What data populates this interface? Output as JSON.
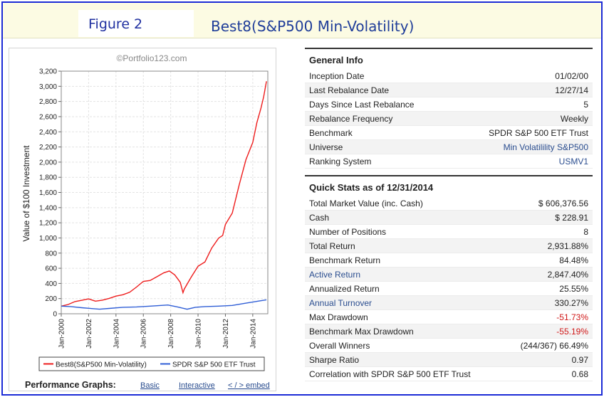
{
  "header": {
    "figure_label": "Figure 2",
    "title": "Best8(S&P500 Min-Volatility)"
  },
  "chart": {
    "watermark": "©Portfolio123.com",
    "perf_label": "Performance Graphs:",
    "link_basic": "Basic",
    "link_interactive": "Interactive",
    "link_embed": "< / > embed"
  },
  "chart_data": {
    "type": "line",
    "title": "",
    "xlabel": "",
    "ylabel": "Value of $100 Investment",
    "ylim": [
      0,
      3200
    ],
    "yticks": [
      0,
      200,
      400,
      600,
      800,
      1000,
      1200,
      1400,
      1600,
      1800,
      2000,
      2200,
      2400,
      2600,
      2800,
      3000,
      3200
    ],
    "ytick_labels": [
      "0",
      "200",
      "400",
      "600",
      "800",
      "1,000",
      "1,200",
      "1,400",
      "1,600",
      "1,800",
      "2,000",
      "2,200",
      "2,400",
      "2,600",
      "2,800",
      "3,000",
      "3,200"
    ],
    "xlim": [
      2000,
      2015.1
    ],
    "xticks": [
      2000,
      2002,
      2004,
      2006,
      2008,
      2010,
      2012,
      2014
    ],
    "xtick_labels": [
      "Jan-2000",
      "Jan-2002",
      "Jan-2004",
      "Jan-2006",
      "Jan-2008",
      "Jan-2010",
      "Jan-2012",
      "Jan-2014"
    ],
    "grid": true,
    "legend": "bottom",
    "series": [
      {
        "name": "Best8(S&P500 Min-Volatility)",
        "color": "#ee1c1c",
        "x": [
          2000.0,
          2000.5,
          2001.0,
          2001.5,
          2002.0,
          2002.5,
          2003.0,
          2003.5,
          2004.0,
          2004.5,
          2005.0,
          2005.5,
          2006.0,
          2006.5,
          2007.0,
          2007.5,
          2007.9,
          2008.3,
          2008.7,
          2008.9,
          2009.0,
          2009.2,
          2009.5,
          2010.0,
          2010.5,
          2011.0,
          2011.5,
          2011.8,
          2012.0,
          2012.5,
          2013.0,
          2013.5,
          2014.0,
          2014.3,
          2014.6,
          2014.8,
          2015.0
        ],
        "y": [
          100,
          120,
          165,
          175,
          195,
          170,
          175,
          205,
          235,
          245,
          290,
          350,
          420,
          450,
          480,
          540,
          575,
          500,
          420,
          280,
          320,
          400,
          480,
          620,
          700,
          850,
          1000,
          1050,
          1150,
          1350,
          1700,
          2000,
          2300,
          2500,
          2700,
          2900,
          3030
        ]
      },
      {
        "name": "SPDR S&P 500 ETF Trust",
        "color": "#2f5ed6",
        "x": [
          2000.0,
          2000.7,
          2001.5,
          2002.0,
          2002.8,
          2003.5,
          2004.5,
          2005.5,
          2006.5,
          2007.5,
          2007.8,
          2008.5,
          2009.2,
          2009.8,
          2010.5,
          2011.5,
          2012.5,
          2013.5,
          2014.5,
          2015.0
        ],
        "y": [
          100,
          95,
          80,
          72,
          60,
          70,
          85,
          90,
          100,
          112,
          115,
          90,
          60,
          85,
          95,
          100,
          110,
          140,
          170,
          184
        ]
      }
    ]
  },
  "general_info": {
    "title": "General Info",
    "rows": [
      {
        "label": "Inception Date",
        "value": "01/02/00"
      },
      {
        "label": "Last Rebalance Date",
        "value": "12/27/14"
      },
      {
        "label": "Days Since Last Rebalance",
        "value": "5"
      },
      {
        "label": "Rebalance Frequency",
        "value": "Weekly"
      },
      {
        "label": "Benchmark",
        "value": "SPDR S&P 500 ETF Trust"
      },
      {
        "label": "Universe",
        "value": "Min Volatilility S&P500"
      },
      {
        "label": "Ranking System",
        "value": "USMV1"
      }
    ]
  },
  "quick_stats": {
    "title": "Quick Stats as of 12/31/2014",
    "rows": [
      {
        "label": "Total Market Value (inc. Cash)",
        "value": "$ 606,376.56"
      },
      {
        "label": "Cash",
        "value": "$ 228.91"
      },
      {
        "label": "Number of Positions",
        "value": "8"
      },
      {
        "label": "Total Return",
        "value": "2,931.88%"
      },
      {
        "label": "Benchmark Return",
        "value": "84.48%"
      },
      {
        "label": "Active Return",
        "value": "2,847.40%"
      },
      {
        "label": "Annualized Return",
        "value": "25.55%"
      },
      {
        "label": "Annual Turnover",
        "value": "330.27%"
      },
      {
        "label": "Max Drawdown",
        "value": "-51.73%"
      },
      {
        "label": "Benchmark Max Drawdown",
        "value": "-55.19%"
      },
      {
        "label": "Overall Winners",
        "value": "(244/367) 66.49%"
      },
      {
        "label": "Sharpe Ratio",
        "value": "0.97"
      },
      {
        "label": "Correlation with SPDR S&P 500 ETF Trust",
        "value": "0.68"
      }
    ]
  },
  "colors": {
    "frame": "#1c2bd6",
    "header_bg": "#fcfbe3",
    "link_blue": "#2a4d8f",
    "negative_red": "#d01818"
  }
}
